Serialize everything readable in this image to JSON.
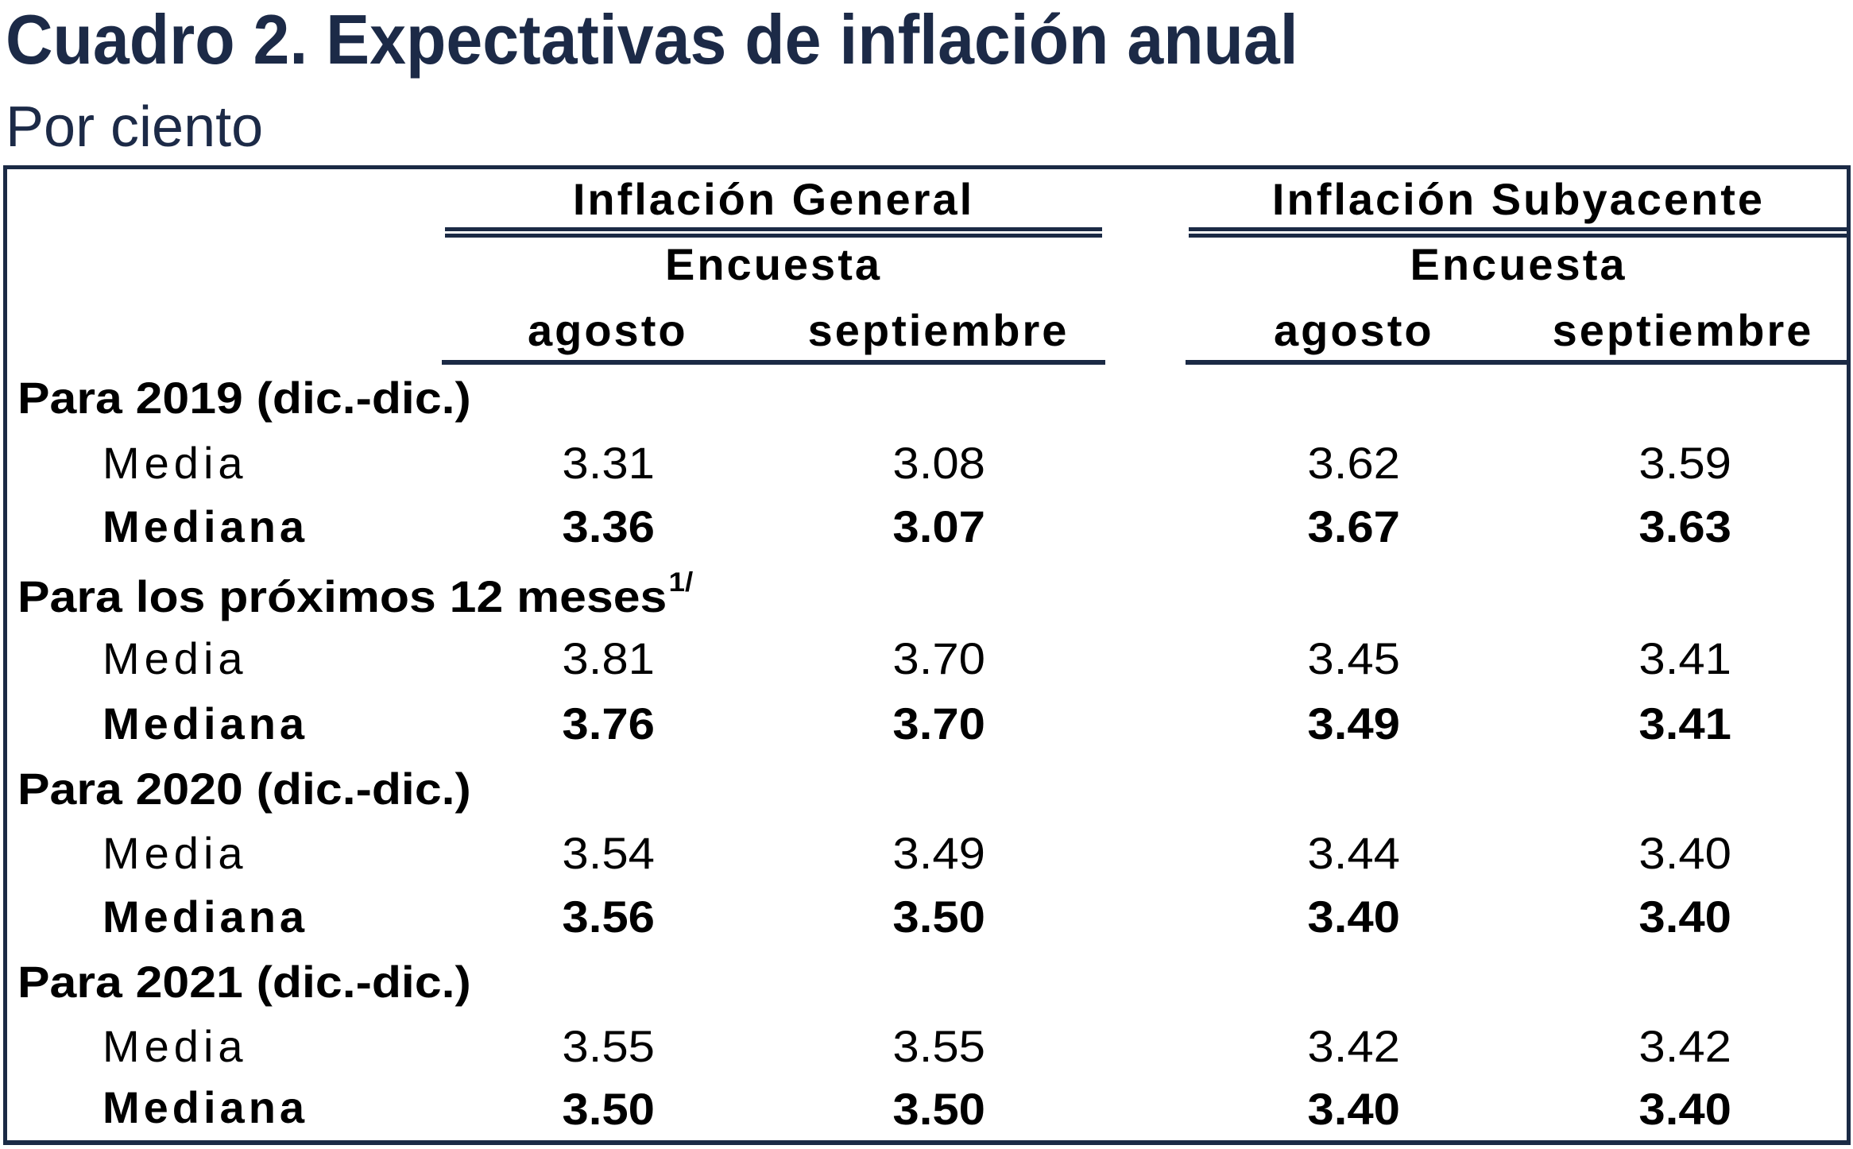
{
  "header": {
    "title": "Cuadro 2. Expectativas de inflación anual",
    "subtitle": "Por ciento"
  },
  "colors": {
    "title": "#1c2a47",
    "rules": "#1b2a45",
    "text": "#000000"
  },
  "table": {
    "groups": [
      {
        "label": "Inflación General",
        "sublabel": "Encuesta",
        "columns": [
          "agosto",
          "septiembre"
        ]
      },
      {
        "label": "Inflación Subyacente",
        "sublabel": "Encuesta",
        "columns": [
          "agosto",
          "septiembre"
        ]
      }
    ],
    "sections": [
      {
        "label": "Para 2019 (dic.-dic.)",
        "footnote": "",
        "rows": [
          {
            "label": "Media",
            "values": [
              "3.31",
              "3.08",
              "3.62",
              "3.59"
            ]
          },
          {
            "label": "Mediana",
            "values": [
              "3.36",
              "3.07",
              "3.67",
              "3.63"
            ]
          }
        ]
      },
      {
        "label": "Para los próximos 12 meses",
        "footnote": "1/",
        "rows": [
          {
            "label": "Media",
            "values": [
              "3.81",
              "3.70",
              "3.45",
              "3.41"
            ]
          },
          {
            "label": "Mediana",
            "values": [
              "3.76",
              "3.70",
              "3.49",
              "3.41"
            ]
          }
        ]
      },
      {
        "label": "Para 2020 (dic.-dic.)",
        "footnote": "",
        "rows": [
          {
            "label": "Media",
            "values": [
              "3.54",
              "3.49",
              "3.44",
              "3.40"
            ]
          },
          {
            "label": "Mediana",
            "values": [
              "3.56",
              "3.50",
              "3.40",
              "3.40"
            ]
          }
        ]
      },
      {
        "label": "Para 2021 (dic.-dic.)",
        "footnote": "",
        "rows": [
          {
            "label": "Media",
            "values": [
              "3.55",
              "3.55",
              "3.42",
              "3.42"
            ]
          },
          {
            "label": "Mediana",
            "values": [
              "3.50",
              "3.50",
              "3.40",
              "3.40"
            ]
          }
        ]
      }
    ]
  }
}
